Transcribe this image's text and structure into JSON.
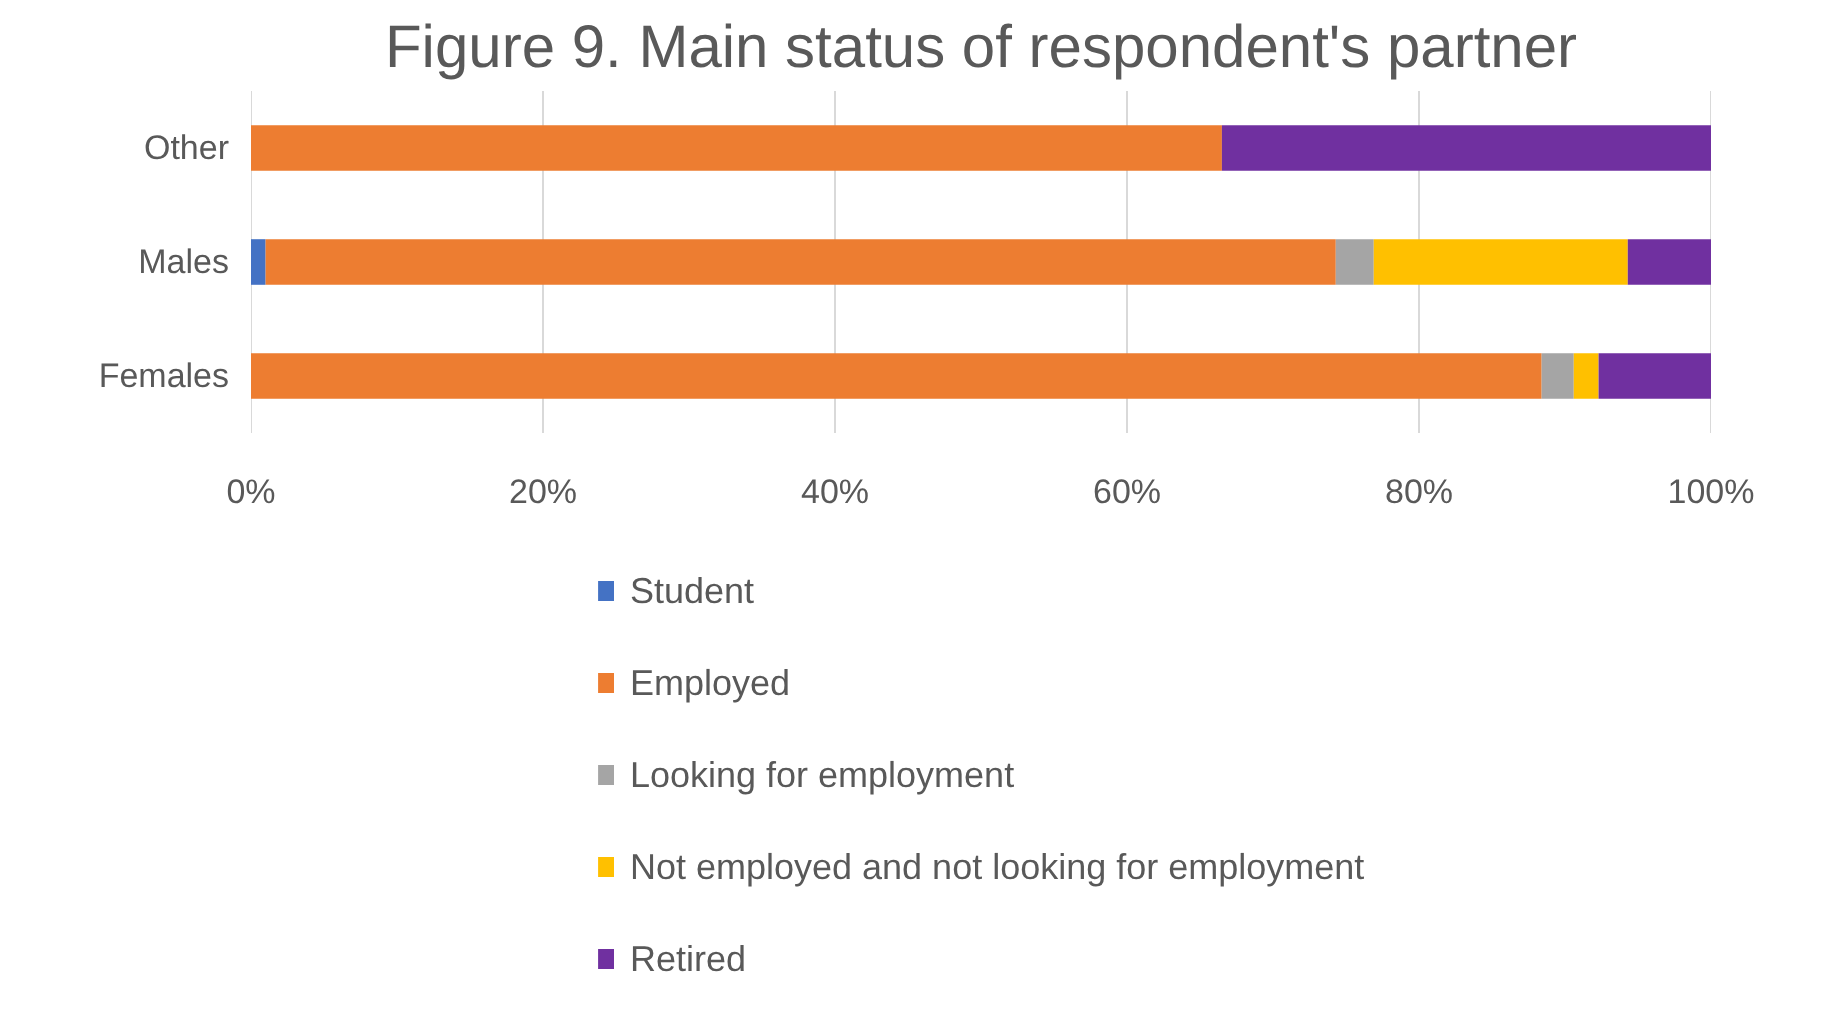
{
  "chart_data": {
    "type": "bar",
    "orientation": "horizontal",
    "stacked": true,
    "title": "Figure 9. Main status of respondent's partner",
    "categories": [
      "Other",
      "Males",
      "Females"
    ],
    "series": [
      {
        "name": "Student",
        "color": "#4472c4",
        "values": [
          0,
          1.0,
          0
        ]
      },
      {
        "name": "Employed",
        "color": "#ed7d31",
        "values": [
          66.5,
          73.3,
          88.4
        ]
      },
      {
        "name": "Looking for employment",
        "color": "#a5a5a5",
        "values": [
          0,
          2.6,
          2.2
        ]
      },
      {
        "name": "Not employed and not looking for employment",
        "color": "#ffc000",
        "values": [
          0,
          17.4,
          1.7
        ]
      },
      {
        "name": "Retired",
        "color": "#7030a0",
        "values": [
          33.5,
          5.7,
          7.7
        ]
      }
    ],
    "xlim": [
      0,
      100
    ],
    "xticks": [
      {
        "value": 0,
        "label": "0%"
      },
      {
        "value": 20,
        "label": "20%"
      },
      {
        "value": 40,
        "label": "40%"
      },
      {
        "value": 60,
        "label": "60%"
      },
      {
        "value": 80,
        "label": "80%"
      },
      {
        "value": 100,
        "label": "100%"
      }
    ],
    "grid": "x",
    "legend": "bottom"
  }
}
